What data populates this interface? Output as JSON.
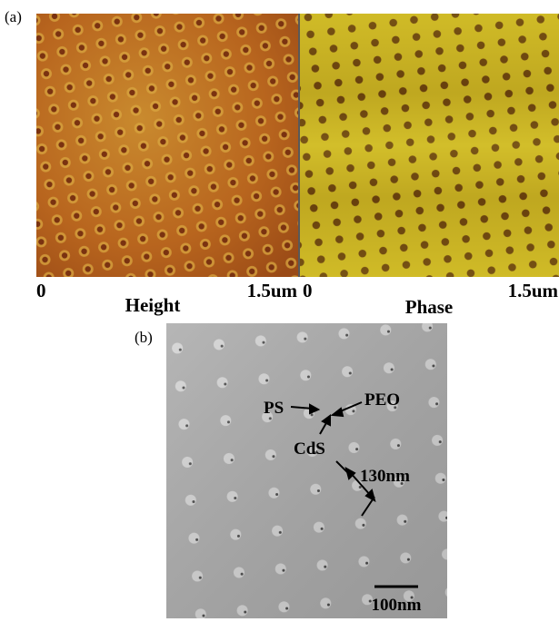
{
  "panel_a": {
    "label": "(a)",
    "height": {
      "start": "0",
      "title": "Height",
      "end": "1.5um"
    },
    "phase": {
      "start": "0",
      "title": "Phase",
      "end": "1.5um"
    }
  },
  "panel_b": {
    "label": "(b)",
    "annotations": {
      "ps": "PS",
      "peo": "PEO",
      "cds": "CdS",
      "spacing": "130nm"
    },
    "scale_bar": "100nm"
  }
}
